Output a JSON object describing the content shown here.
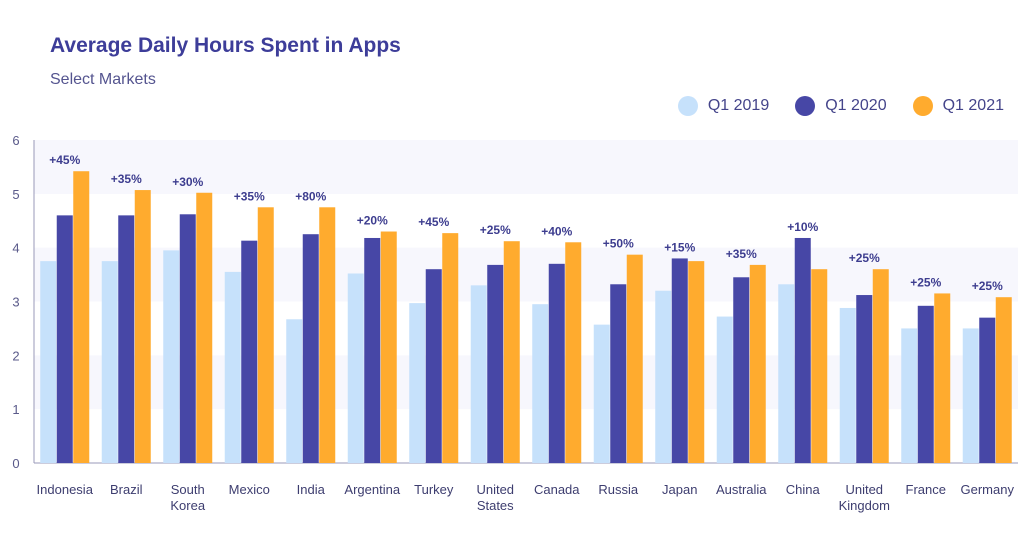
{
  "header": {
    "title": "Average Daily Hours Spent in Apps",
    "subtitle": "Select Markets"
  },
  "chart_data": {
    "type": "bar",
    "title": "Average Daily Hours Spent in Apps",
    "subtitle": "Select Markets",
    "xlabel": "",
    "ylabel": "",
    "ylim": [
      0,
      6
    ],
    "yticks": [
      "0",
      "1",
      "2",
      "3",
      "4",
      "5",
      "6"
    ],
    "legend_position": "top-right",
    "grid": true,
    "categories": [
      [
        "Indonesia"
      ],
      [
        "Brazil"
      ],
      [
        "South",
        "Korea"
      ],
      [
        "Mexico"
      ],
      [
        "India"
      ],
      [
        "Argentina"
      ],
      [
        "Turkey"
      ],
      [
        "United",
        "States"
      ],
      [
        "Canada"
      ],
      [
        "Russia"
      ],
      [
        "Japan"
      ],
      [
        "Australia"
      ],
      [
        "China"
      ],
      [
        "United",
        "Kingdom"
      ],
      [
        "France"
      ],
      [
        "Germany"
      ]
    ],
    "series": [
      {
        "name": "Q1 2019",
        "color": "#c6e1fb",
        "values": [
          3.75,
          3.75,
          3.95,
          3.55,
          2.67,
          3.52,
          2.97,
          3.3,
          2.95,
          2.57,
          3.2,
          2.72,
          3.32,
          2.88,
          2.5,
          2.5
        ]
      },
      {
        "name": "Q1 2020",
        "color": "#4747a6",
        "values": [
          4.6,
          4.6,
          4.62,
          4.13,
          4.25,
          4.18,
          3.6,
          3.68,
          3.7,
          3.32,
          3.8,
          3.45,
          4.18,
          3.12,
          2.92,
          2.7
        ]
      },
      {
        "name": "Q1 2021",
        "color": "#ffab2e",
        "values": [
          5.42,
          5.07,
          5.02,
          4.75,
          4.75,
          4.3,
          4.27,
          4.12,
          4.1,
          3.87,
          3.75,
          3.68,
          3.6,
          3.6,
          3.15,
          3.08
        ]
      }
    ],
    "annotations": [
      "+45%",
      "+35%",
      "+30%",
      "+35%",
      "+80%",
      "+20%",
      "+45%",
      "+25%",
      "+40%",
      "+50%",
      "+15%",
      "+35%",
      "+10%",
      "+25%",
      "+25%",
      "+25%"
    ]
  }
}
